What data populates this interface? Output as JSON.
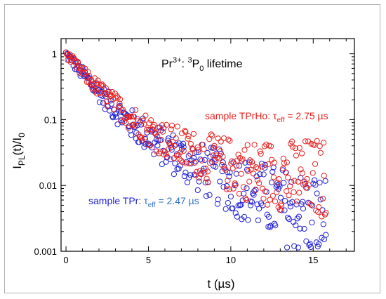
{
  "chart_data": {
    "type": "scatter",
    "title": "Pr³⁺: ³P₀ lifetime",
    "title_parts": {
      "base": "Pr",
      "sup1": "3+",
      "mid": ": ",
      "sup2": "3",
      "p": "P",
      "sub": "0",
      "tail": " lifetime"
    },
    "xlabel": "t (µs)",
    "ylabel": "I_PL(t)/I_0",
    "ylabel_parts": {
      "i": "I",
      "sub1": "PL",
      "mid": "(t)/I",
      "sub2": "0"
    },
    "xlim": [
      -0.3,
      17.5
    ],
    "ylim": [
      0.001,
      1.7
    ],
    "yscale": "log",
    "x_ticks": [
      0,
      5,
      10,
      15
    ],
    "y_ticks": [
      0.001,
      0.01,
      0.1,
      1
    ],
    "x_tick_labels": [
      "0",
      "5",
      "10",
      "15"
    ],
    "y_tick_labels": [
      "0.001",
      "0.01",
      "0.1",
      "1"
    ],
    "marker": "open-circle",
    "series": [
      {
        "name": "sample TPr",
        "color": "#1f1fd6",
        "tau_eff": 2.47,
        "annotation": {
          "prefix": "sample TPr: ",
          "tau": "τ",
          "sub": "eff",
          "value": " = 2.47 µs"
        },
        "curve": [
          {
            "x": 0,
            "y": 1.0
          },
          {
            "x": 1,
            "y": 0.5
          },
          {
            "x": 2,
            "y": 0.26
          },
          {
            "x": 3,
            "y": 0.14
          },
          {
            "x": 4,
            "y": 0.085
          },
          {
            "x": 5,
            "y": 0.055
          },
          {
            "x": 6,
            "y": 0.037
          },
          {
            "x": 7,
            "y": 0.026
          },
          {
            "x": 8,
            "y": 0.019
          },
          {
            "x": 9,
            "y": 0.014
          },
          {
            "x": 10,
            "y": 0.011
          },
          {
            "x": 11,
            "y": 0.0085
          },
          {
            "x": 12,
            "y": 0.0065
          },
          {
            "x": 13,
            "y": 0.005
          },
          {
            "x": 14,
            "y": 0.004
          },
          {
            "x": 15,
            "y": 0.0035
          },
          {
            "x": 15.8,
            "y": 0.003
          }
        ]
      },
      {
        "name": "sample TPrHo",
        "color": "#e8201e",
        "tau_eff": 2.75,
        "annotation": {
          "prefix": "sample TPrHo: ",
          "tau": "τ",
          "sub": "eff",
          "value": " = 2.75 µs"
        },
        "curve": [
          {
            "x": 0,
            "y": 1.0
          },
          {
            "x": 1,
            "y": 0.52
          },
          {
            "x": 2,
            "y": 0.29
          },
          {
            "x": 3,
            "y": 0.17
          },
          {
            "x": 4,
            "y": 0.105
          },
          {
            "x": 5,
            "y": 0.07
          },
          {
            "x": 6,
            "y": 0.05
          },
          {
            "x": 7,
            "y": 0.037
          },
          {
            "x": 8,
            "y": 0.029
          },
          {
            "x": 9,
            "y": 0.024
          },
          {
            "x": 10,
            "y": 0.02
          },
          {
            "x": 11,
            "y": 0.017
          },
          {
            "x": 12,
            "y": 0.0155
          },
          {
            "x": 13,
            "y": 0.0145
          },
          {
            "x": 14,
            "y": 0.0135
          },
          {
            "x": 15,
            "y": 0.013
          },
          {
            "x": 15.8,
            "y": 0.0125
          }
        ]
      }
    ]
  }
}
